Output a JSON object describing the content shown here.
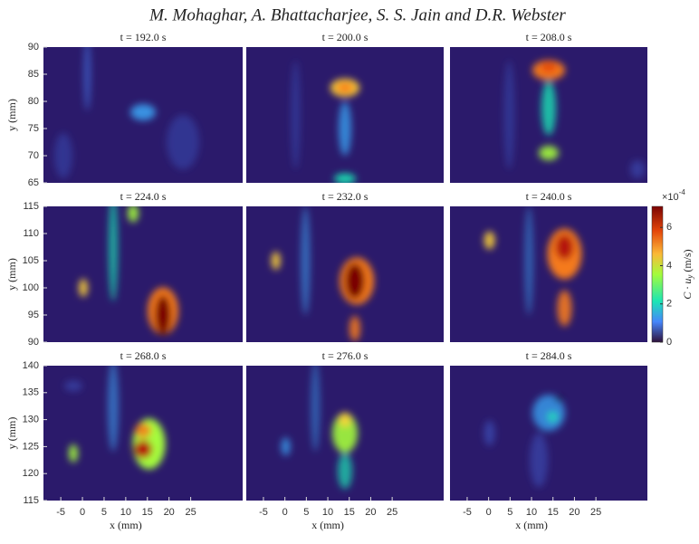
{
  "header": {
    "title": "M. Mohaghar, A. Bhattacharjee, S. S. Jain and D.R. Webster"
  },
  "rows": [
    {
      "y_label": "y (mm)",
      "ylim": [
        65,
        90
      ],
      "yticks": [
        65,
        70,
        75,
        80,
        85,
        90
      ]
    },
    {
      "y_label": "y (mm)",
      "ylim": [
        90,
        115
      ],
      "yticks": [
        90,
        95,
        100,
        105,
        110,
        115
      ]
    },
    {
      "y_label": "y (mm)",
      "ylim": [
        115,
        140
      ],
      "yticks": [
        115,
        120,
        125,
        130,
        135,
        140
      ]
    }
  ],
  "x_axis": {
    "x_label": "x (mm)",
    "xlim": [
      -9,
      37
    ],
    "xticks": [
      -5,
      0,
      5,
      10,
      15,
      20,
      25
    ]
  },
  "panels": [
    {
      "title": "t = 192.0 s"
    },
    {
      "title": "t = 200.0 s"
    },
    {
      "title": "t = 208.0 s"
    },
    {
      "title": "t = 224.0 s"
    },
    {
      "title": "t = 232.0 s"
    },
    {
      "title": "t = 240.0 s"
    },
    {
      "title": "t = 268.0 s"
    },
    {
      "title": "t = 276.0 s"
    },
    {
      "title": "t = 284.0 s"
    }
  ],
  "colorbar": {
    "lim": [
      0,
      7.1
    ],
    "ticks": [
      0,
      2,
      4,
      6
    ],
    "exponent_base": "×10",
    "exponent_power": "-4",
    "label_main": "C · u",
    "label_sub": "y",
    "label_unit": "(m/s)"
  }
}
